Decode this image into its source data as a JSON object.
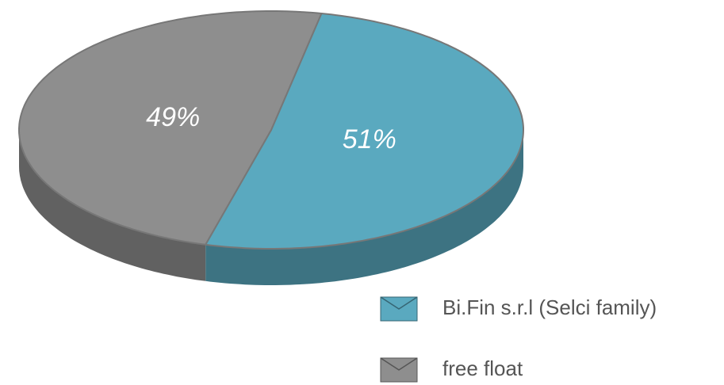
{
  "chart_data": {
    "type": "pie",
    "categories": [
      "Bi.Fin s.r.l  (Selci family)",
      "free float"
    ],
    "values": [
      51,
      49
    ],
    "value_labels": [
      "51%",
      "49%"
    ],
    "colors": [
      "#5aa9bf",
      "#8e8e8e"
    ]
  }
}
